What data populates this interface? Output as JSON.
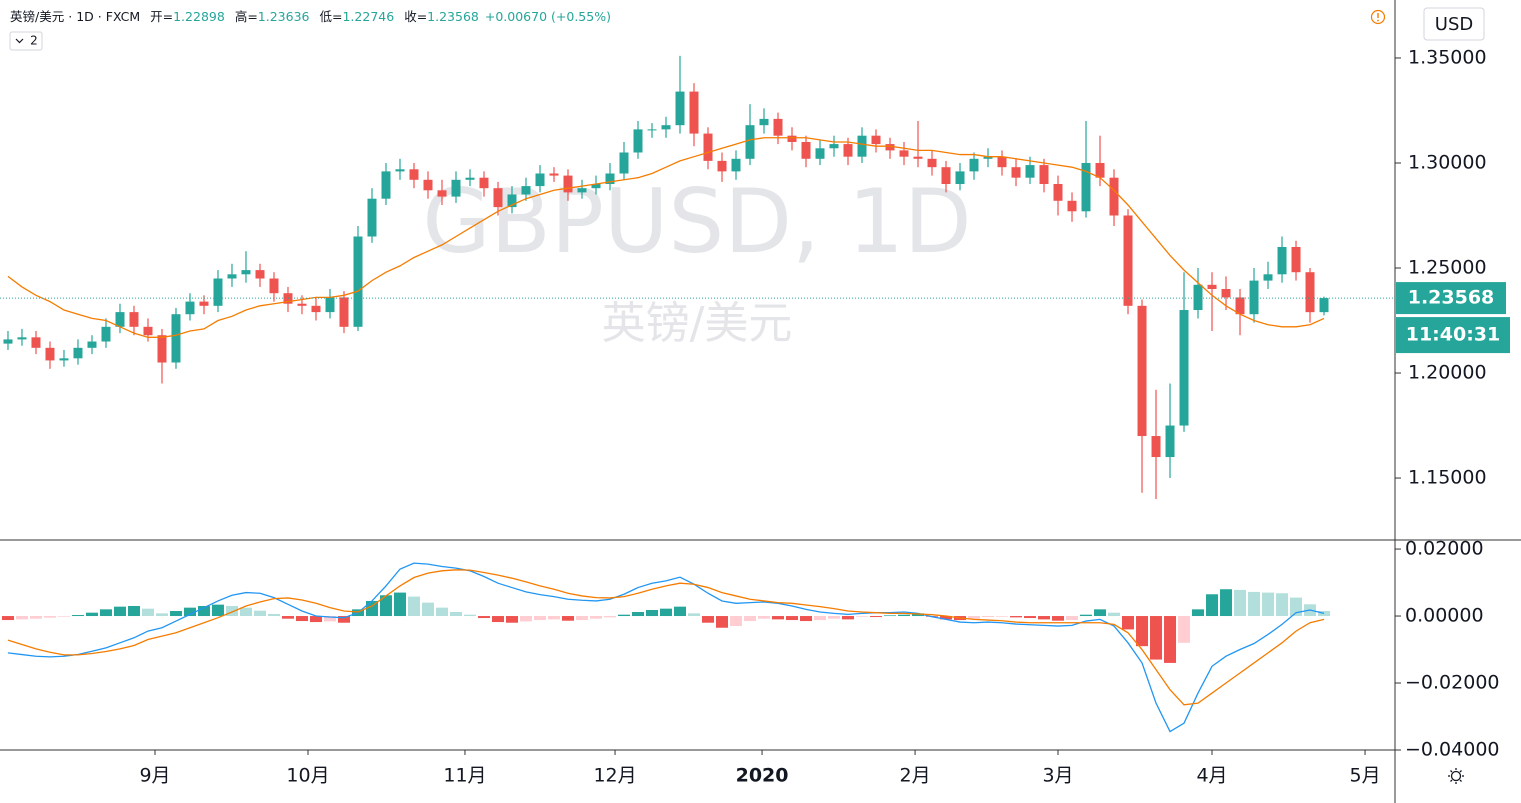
{
  "legend": {
    "symbol": "英镑/美元",
    "interval": "1D",
    "source": "FXCM",
    "fields": [
      {
        "label": "开=",
        "key": "open"
      },
      {
        "label": "高=",
        "key": "high"
      },
      {
        "label": "低=",
        "key": "low"
      },
      {
        "label": "收=",
        "key": "close"
      }
    ],
    "change": "+0.00670 (+0.55%)",
    "studies": 2
  },
  "chart_data": [
    {
      "type": "candlestick",
      "watermark": "GBPUSD, 1D",
      "watermark_sub": "英镑/美元",
      "currency": "USD",
      "countdown": "11:40:31",
      "up_color": "#26a69a",
      "down_color": "#ef5350",
      "bold_xtick": 4,
      "xlim": [
        -0.57,
        99.07
      ],
      "xticks": [
        {
          "value": 10.5,
          "label": "9月"
        },
        {
          "value": 21.43,
          "label": "10月"
        },
        {
          "value": 32.64,
          "label": "11月"
        },
        {
          "value": 43.36,
          "label": "12月"
        },
        {
          "value": 53.86,
          "label": "2020"
        },
        {
          "value": 64.79,
          "label": "2月"
        },
        {
          "value": 75,
          "label": "3月"
        },
        {
          "value": 86,
          "label": "4月"
        },
        {
          "value": 96.93,
          "label": "5月"
        }
      ],
      "ylim": [
        1.1205,
        1.3776
      ],
      "yticks": [
        {
          "value": 1.35,
          "label": "1.35000"
        },
        {
          "value": 1.3,
          "label": "1.30000"
        },
        {
          "value": 1.25,
          "label": "1.25000"
        },
        {
          "value": 1.2,
          "label": "1.20000"
        },
        {
          "value": 1.15,
          "label": "1.15000"
        }
      ],
      "open": [
        1.214,
        1.216,
        1.217,
        1.212,
        1.206,
        1.207,
        1.212,
        1.215,
        1.222,
        1.229,
        1.222,
        1.218,
        1.205,
        1.228,
        1.234,
        1.232,
        1.245,
        1.247,
        1.249,
        1.245,
        1.238,
        1.233,
        1.232,
        1.229,
        1.236,
        1.222,
        1.265,
        1.283,
        1.296,
        1.297,
        1.292,
        1.287,
        1.284,
        1.292,
        1.293,
        1.288,
        1.279,
        1.285,
        1.289,
        1.295,
        1.294,
        1.286,
        1.288,
        1.29,
        1.295,
        1.305,
        1.316,
        1.316,
        1.318,
        1.334,
        1.314,
        1.301,
        1.296,
        1.302,
        1.318,
        1.321,
        1.313,
        1.31,
        1.302,
        1.307,
        1.309,
        1.303,
        1.313,
        1.309,
        1.306,
        1.303,
        1.302,
        1.298,
        1.29,
        1.296,
        1.302,
        1.303,
        1.298,
        1.293,
        1.299,
        1.29,
        1.282,
        1.277,
        1.3,
        1.293,
        1.275,
        1.232,
        1.17,
        1.16,
        1.175,
        1.23,
        1.242,
        1.24,
        1.236,
        1.228,
        1.244,
        1.247,
        1.26,
        1.248,
        1.22898
      ],
      "high": [
        1.22,
        1.221,
        1.22,
        1.215,
        1.211,
        1.216,
        1.218,
        1.226,
        1.233,
        1.232,
        1.226,
        1.221,
        1.231,
        1.238,
        1.237,
        1.249,
        1.252,
        1.258,
        1.252,
        1.248,
        1.241,
        1.237,
        1.236,
        1.24,
        1.239,
        1.27,
        1.288,
        1.3,
        1.302,
        1.3,
        1.296,
        1.292,
        1.296,
        1.297,
        1.296,
        1.291,
        1.289,
        1.293,
        1.299,
        1.298,
        1.297,
        1.292,
        1.294,
        1.3,
        1.31,
        1.32,
        1.319,
        1.322,
        1.351,
        1.338,
        1.317,
        1.305,
        1.306,
        1.328,
        1.326,
        1.324,
        1.317,
        1.313,
        1.311,
        1.313,
        1.312,
        1.317,
        1.316,
        1.312,
        1.31,
        1.32,
        1.306,
        1.301,
        1.3,
        1.305,
        1.307,
        1.306,
        1.302,
        1.303,
        1.302,
        1.294,
        1.286,
        1.32,
        1.313,
        1.297,
        1.278,
        1.235,
        1.192,
        1.195,
        1.248,
        1.25,
        1.248,
        1.246,
        1.24,
        1.25,
        1.253,
        1.265,
        1.263,
        1.25,
        1.23636
      ],
      "low": [
        1.211,
        1.213,
        1.209,
        1.202,
        1.203,
        1.204,
        1.209,
        1.212,
        1.219,
        1.218,
        1.215,
        1.195,
        1.202,
        1.225,
        1.228,
        1.229,
        1.241,
        1.243,
        1.241,
        1.234,
        1.229,
        1.228,
        1.225,
        1.226,
        1.219,
        1.22,
        1.262,
        1.28,
        1.292,
        1.288,
        1.283,
        1.28,
        1.281,
        1.289,
        1.284,
        1.275,
        1.276,
        1.282,
        1.286,
        1.291,
        1.282,
        1.283,
        1.285,
        1.287,
        1.292,
        1.302,
        1.312,
        1.312,
        1.314,
        1.308,
        1.297,
        1.291,
        1.292,
        1.299,
        1.314,
        1.309,
        1.306,
        1.298,
        1.299,
        1.303,
        1.299,
        1.3,
        1.305,
        1.302,
        1.299,
        1.298,
        1.294,
        1.286,
        1.287,
        1.292,
        1.298,
        1.294,
        1.289,
        1.29,
        1.286,
        1.275,
        1.272,
        1.274,
        1.289,
        1.27,
        1.228,
        1.143,
        1.14,
        1.15,
        1.172,
        1.226,
        1.22,
        1.23,
        1.218,
        1.224,
        1.24,
        1.243,
        1.244,
        1.224,
        1.22746
      ],
      "close": [
        1.216,
        1.217,
        1.212,
        1.206,
        1.207,
        1.212,
        1.215,
        1.222,
        1.229,
        1.222,
        1.218,
        1.205,
        1.228,
        1.234,
        1.232,
        1.245,
        1.247,
        1.249,
        1.245,
        1.238,
        1.233,
        1.232,
        1.229,
        1.236,
        1.222,
        1.265,
        1.283,
        1.296,
        1.297,
        1.292,
        1.287,
        1.284,
        1.292,
        1.293,
        1.288,
        1.279,
        1.285,
        1.289,
        1.295,
        1.294,
        1.286,
        1.288,
        1.29,
        1.295,
        1.305,
        1.316,
        1.316,
        1.318,
        1.334,
        1.314,
        1.301,
        1.296,
        1.302,
        1.318,
        1.321,
        1.313,
        1.31,
        1.302,
        1.307,
        1.309,
        1.303,
        1.313,
        1.309,
        1.306,
        1.303,
        1.302,
        1.298,
        1.29,
        1.296,
        1.302,
        1.303,
        1.298,
        1.293,
        1.299,
        1.29,
        1.282,
        1.277,
        1.3,
        1.293,
        1.275,
        1.232,
        1.17,
        1.16,
        1.175,
        1.23,
        1.242,
        1.24,
        1.236,
        1.228,
        1.244,
        1.247,
        1.26,
        1.248,
        1.22898,
        1.23568
      ],
      "ma": {
        "color": "#f57c00",
        "values": [
          1.246,
          1.241,
          1.237,
          1.234,
          1.23,
          1.228,
          1.226,
          1.225,
          1.222,
          1.219,
          1.217,
          1.217,
          1.218,
          1.22,
          1.221,
          1.225,
          1.227,
          1.23,
          1.232,
          1.233,
          1.234,
          1.235,
          1.236,
          1.236,
          1.237,
          1.239,
          1.244,
          1.248,
          1.251,
          1.255,
          1.258,
          1.261,
          1.265,
          1.269,
          1.273,
          1.277,
          1.28,
          1.283,
          1.285,
          1.287,
          1.288,
          1.289,
          1.29,
          1.291,
          1.292,
          1.293,
          1.295,
          1.298,
          1.301,
          1.303,
          1.305,
          1.307,
          1.309,
          1.311,
          1.312,
          1.312,
          1.312,
          1.312,
          1.311,
          1.31,
          1.31,
          1.309,
          1.308,
          1.308,
          1.307,
          1.306,
          1.306,
          1.305,
          1.304,
          1.304,
          1.303,
          1.303,
          1.302,
          1.301,
          1.3,
          1.299,
          1.298,
          1.296,
          1.293,
          1.287,
          1.28,
          1.272,
          1.264,
          1.256,
          1.249,
          1.243,
          1.237,
          1.232,
          1.228,
          1.225,
          1.223,
          1.222,
          1.222,
          1.223,
          1.226
        ]
      }
    },
    {
      "type": "macd",
      "ylim": [
        -0.04,
        0.0227
      ],
      "yticks": [
        {
          "value": 0.02,
          "label": "0.02000"
        },
        {
          "value": 0,
          "label": "0.00000"
        },
        {
          "value": -0.02,
          "label": "−0.02000"
        },
        {
          "value": -0.04,
          "label": "−0.04000"
        }
      ],
      "colors": {
        "up": "#26a69a",
        "up_fading": "#b2dfdb",
        "down": "#ef5350",
        "down_fading": "#ffcdd2"
      },
      "histogram": [
        -0.0012,
        -0.001,
        -0.0008,
        -0.0005,
        -0.0002,
        0.0003,
        0.001,
        0.002,
        0.0028,
        0.003,
        0.0022,
        0.0008,
        0.0015,
        0.0025,
        0.003,
        0.0034,
        0.003,
        0.0025,
        0.0016,
        0.0006,
        -0.0008,
        -0.0015,
        -0.0018,
        -0.0016,
        -0.002,
        0.002,
        0.0045,
        0.0062,
        0.007,
        0.0058,
        0.004,
        0.0025,
        0.0012,
        0.0004,
        -0.0006,
        -0.0018,
        -0.002,
        -0.0016,
        -0.0012,
        -0.001,
        -0.0014,
        -0.0012,
        -0.0008,
        -0.0004,
        0.0004,
        0.0012,
        0.0018,
        0.0022,
        0.0028,
        0.0008,
        -0.002,
        -0.0035,
        -0.003,
        -0.0015,
        -0.0008,
        -0.001,
        -0.0012,
        -0.0015,
        -0.0012,
        -0.0008,
        -0.001,
        -0.0002,
        -0.0003,
        0.0002,
        0.0004,
        0.0008,
        -0.0002,
        -0.001,
        -0.0012,
        -0.0008,
        -0.0003,
        -0.0002,
        -0.0004,
        -0.0006,
        -0.001,
        -0.0014,
        -0.0012,
        0.0004,
        0.002,
        0.001,
        -0.004,
        -0.009,
        -0.013,
        -0.014,
        -0.008,
        0.002,
        0.0065,
        0.008,
        0.0078,
        0.0072,
        0.007,
        0.0068,
        0.0055,
        0.0035,
        0.0015
      ],
      "macd": {
        "color": "#2196f3",
        "values": [
          -0.011,
          -0.0115,
          -0.012,
          -0.0122,
          -0.012,
          -0.0115,
          -0.0105,
          -0.0095,
          -0.008,
          -0.0065,
          -0.0045,
          -0.0035,
          -0.0015,
          0.0005,
          0.0025,
          0.0045,
          0.0062,
          0.007,
          0.0068,
          0.0055,
          0.0035,
          0.0015,
          0.0,
          -0.0003,
          -0.0005,
          0.001,
          0.0045,
          0.009,
          0.014,
          0.0158,
          0.0155,
          0.0148,
          0.0143,
          0.0135,
          0.0118,
          0.0098,
          0.0085,
          0.0072,
          0.0064,
          0.0058,
          0.005,
          0.0047,
          0.0045,
          0.005,
          0.0065,
          0.0085,
          0.0098,
          0.0105,
          0.0116,
          0.0095,
          0.0068,
          0.0045,
          0.0038,
          0.004,
          0.0042,
          0.0038,
          0.003,
          0.002,
          0.0012,
          0.0008,
          0.0005,
          0.0008,
          0.001,
          0.001,
          0.0012,
          0.0008,
          -0.0002,
          -0.001,
          -0.0018,
          -0.002,
          -0.0018,
          -0.002,
          -0.0024,
          -0.0026,
          -0.0028,
          -0.003,
          -0.0028,
          -0.0015,
          -0.001,
          -0.003,
          -0.008,
          -0.014,
          -0.026,
          -0.0345,
          -0.032,
          -0.023,
          -0.015,
          -0.012,
          -0.01,
          -0.0082,
          -0.0055,
          -0.0025,
          0.001,
          0.0018,
          0.0008
        ]
      },
      "signal": {
        "color": "#f57c00",
        "values": [
          -0.0072,
          -0.0085,
          -0.0098,
          -0.0108,
          -0.0116,
          -0.0116,
          -0.0112,
          -0.0106,
          -0.0098,
          -0.0088,
          -0.007,
          -0.006,
          -0.005,
          -0.0035,
          -0.002,
          -0.0005,
          0.0012,
          0.003,
          0.0042,
          0.0052,
          0.0054,
          0.0048,
          0.0038,
          0.0025,
          0.0015,
          0.0012,
          0.003,
          0.006,
          0.009,
          0.0115,
          0.0128,
          0.0135,
          0.0138,
          0.0137,
          0.013,
          0.0122,
          0.0113,
          0.0102,
          0.009,
          0.008,
          0.0068,
          0.006,
          0.0055,
          0.0054,
          0.0058,
          0.0068,
          0.008,
          0.009,
          0.0098,
          0.0095,
          0.0085,
          0.007,
          0.006,
          0.005,
          0.0045,
          0.004,
          0.0038,
          0.0033,
          0.0028,
          0.0022,
          0.0015,
          0.0012,
          0.001,
          0.0008,
          0.0008,
          0.0006,
          0.0004,
          0.0,
          -0.0006,
          -0.001,
          -0.0012,
          -0.0014,
          -0.0018,
          -0.002,
          -0.002,
          -0.002,
          -0.002,
          -0.002,
          -0.002,
          -0.0025,
          -0.005,
          -0.01,
          -0.016,
          -0.022,
          -0.0265,
          -0.026,
          -0.023,
          -0.02,
          -0.017,
          -0.014,
          -0.011,
          -0.008,
          -0.0045,
          -0.002,
          -0.001
        ]
      }
    }
  ]
}
